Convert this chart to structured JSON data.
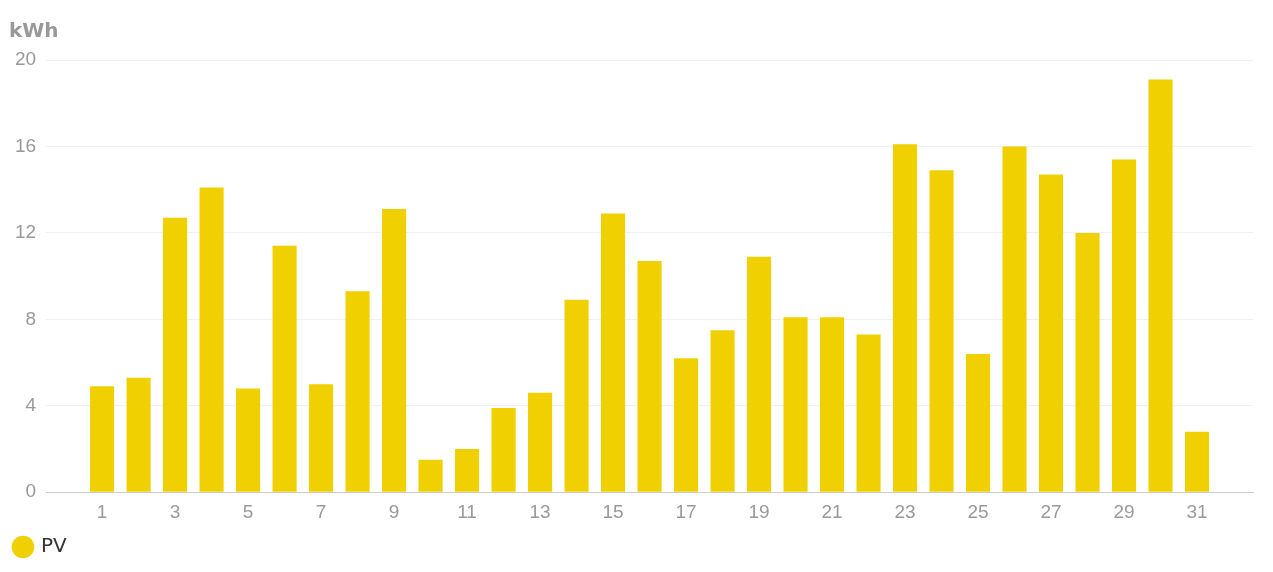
{
  "chart_data": {
    "type": "bar",
    "ylabel": "kWh",
    "x": [
      1,
      2,
      3,
      4,
      5,
      6,
      7,
      8,
      9,
      10,
      11,
      12,
      13,
      14,
      15,
      16,
      17,
      18,
      19,
      20,
      21,
      22,
      23,
      24,
      25,
      26,
      27,
      28,
      29,
      30,
      31
    ],
    "series": [
      {
        "name": "PV",
        "color": "#f0d000",
        "values": [
          4.9,
          5.3,
          12.7,
          14.1,
          4.8,
          11.4,
          5.0,
          9.3,
          13.1,
          1.5,
          2.0,
          3.9,
          4.6,
          8.9,
          12.9,
          10.7,
          6.2,
          7.5,
          10.9,
          8.1,
          8.1,
          7.3,
          16.1,
          14.9,
          6.4,
          16.0,
          14.7,
          12.0,
          15.4,
          19.1,
          2.8
        ]
      }
    ],
    "xlim": [
      0.5,
      31.5
    ],
    "xticks": [
      1,
      3,
      5,
      7,
      9,
      11,
      13,
      15,
      17,
      19,
      21,
      23,
      25,
      27,
      29,
      31
    ],
    "ylim": [
      0,
      20
    ],
    "yticks": [
      0,
      4,
      8,
      12,
      16,
      20
    ],
    "grid": "y",
    "legend": "bottom left"
  }
}
